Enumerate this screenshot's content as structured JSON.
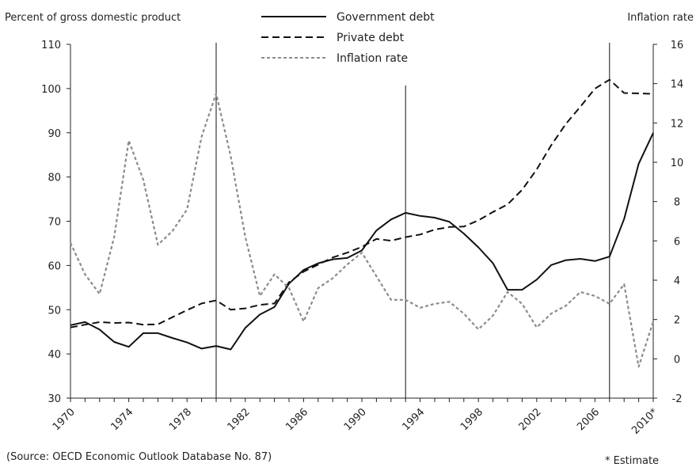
{
  "chart_data": {
    "type": "line",
    "left_axis_label": "Percent of gross domestic product",
    "right_axis_label": "Inflation rate",
    "left_ylim": [
      30,
      110
    ],
    "left_ticks": [
      "30",
      "40",
      "50",
      "60",
      "70",
      "80",
      "90",
      "100",
      "110"
    ],
    "right_ylim": [
      -2,
      16
    ],
    "right_ticks": [
      "-2",
      "0",
      "2",
      "4",
      "6",
      "8",
      "10",
      "12",
      "14",
      "16"
    ],
    "xlim": [
      1970,
      2010
    ],
    "x_ticks": [
      "1970",
      "1974",
      "1978",
      "1982",
      "1986",
      "1990",
      "1994",
      "1998",
      "2002",
      "2006",
      "2010*"
    ],
    "x": [
      1970,
      1971,
      1972,
      1973,
      1974,
      1975,
      1976,
      1977,
      1978,
      1979,
      1980,
      1981,
      1982,
      1983,
      1984,
      1985,
      1986,
      1987,
      1988,
      1989,
      1990,
      1991,
      1992,
      1993,
      1994,
      1995,
      1996,
      1997,
      1998,
      1999,
      2000,
      2001,
      2002,
      2003,
      2004,
      2005,
      2006,
      2007,
      2008,
      2009,
      2010
    ],
    "vertical_lines": [
      1980,
      1993,
      2007
    ],
    "series": [
      {
        "name": "Government debt",
        "axis": "left",
        "style": "solid",
        "color": "#111111",
        "values": [
          46.5,
          47.2,
          45.5,
          42.7,
          41.6,
          44.7,
          44.7,
          43.6,
          42.6,
          41.2,
          41.8,
          41.0,
          45.9,
          48.9,
          50.6,
          55.9,
          59.0,
          60.5,
          61.4,
          61.7,
          63.4,
          67.9,
          70.4,
          71.9,
          71.2,
          70.8,
          69.9,
          67.2,
          64.1,
          60.5,
          54.5,
          54.5,
          56.8,
          60.1,
          61.2,
          61.5,
          61.0,
          62.0,
          70.5,
          83.0,
          90.0
        ]
      },
      {
        "name": "Private debt",
        "axis": "left",
        "style": "dashed",
        "color": "#111111",
        "values": [
          46.0,
          46.6,
          47.2,
          47.0,
          47.1,
          46.6,
          46.7,
          48.3,
          49.9,
          51.4,
          52.1,
          50.0,
          50.3,
          51.1,
          51.4,
          56.2,
          58.6,
          60.2,
          61.8,
          62.9,
          64.2,
          66.0,
          65.6,
          66.4,
          67.0,
          68.1,
          68.7,
          68.8,
          70.2,
          72.1,
          73.8,
          77.1,
          81.7,
          87.2,
          92.0,
          95.9,
          100.0,
          102.0,
          99.0,
          98.9,
          98.8
        ]
      },
      {
        "name": "Inflation rate",
        "axis": "right",
        "style": "dotted",
        "color": "#8c8c8c",
        "values": [
          5.9,
          4.3,
          3.3,
          6.2,
          11.1,
          9.1,
          5.8,
          6.5,
          7.6,
          11.3,
          13.5,
          10.3,
          6.2,
          3.2,
          4.3,
          3.6,
          1.9,
          3.6,
          4.1,
          4.8,
          5.4,
          4.2,
          3.0,
          3.0,
          2.6,
          2.8,
          2.9,
          2.3,
          1.5,
          2.2,
          3.4,
          2.8,
          1.6,
          2.3,
          2.7,
          3.4,
          3.2,
          2.8,
          3.8,
          -0.4,
          1.9
        ]
      }
    ]
  },
  "source_note": "(Source: OECD Economic Outlook Database No. 87)",
  "estimate_note": "* Estimate"
}
